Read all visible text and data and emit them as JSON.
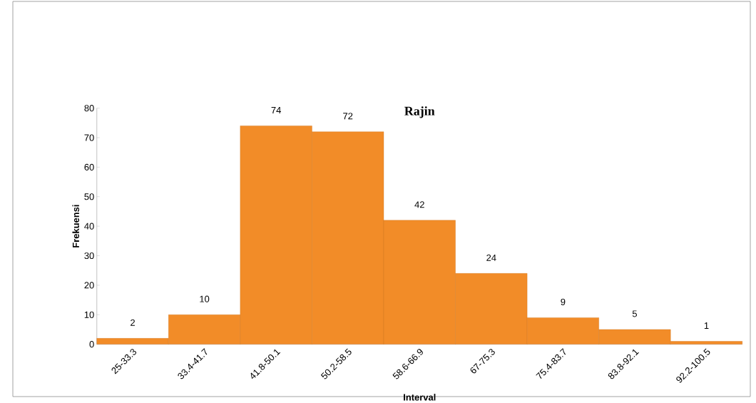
{
  "chart_data": {
    "type": "bar",
    "title": "Rajin",
    "xlabel": "Interval",
    "ylabel": "Frekuensi",
    "categories": [
      "25-33.3",
      "33.4-41.7",
      "41.8-50.1",
      "50.2-58.5",
      "58.6-66.9",
      "67-75.3",
      "75.4-83.7",
      "83.8-92.1",
      "92.2-100.5"
    ],
    "values": [
      2,
      10,
      74,
      72,
      42,
      24,
      9,
      5,
      1
    ],
    "color": "#f28c28",
    "ylim": [
      0,
      80
    ],
    "yticks": [
      0,
      10,
      20,
      30,
      40,
      50,
      60,
      70,
      80
    ],
    "data_labels": true
  }
}
